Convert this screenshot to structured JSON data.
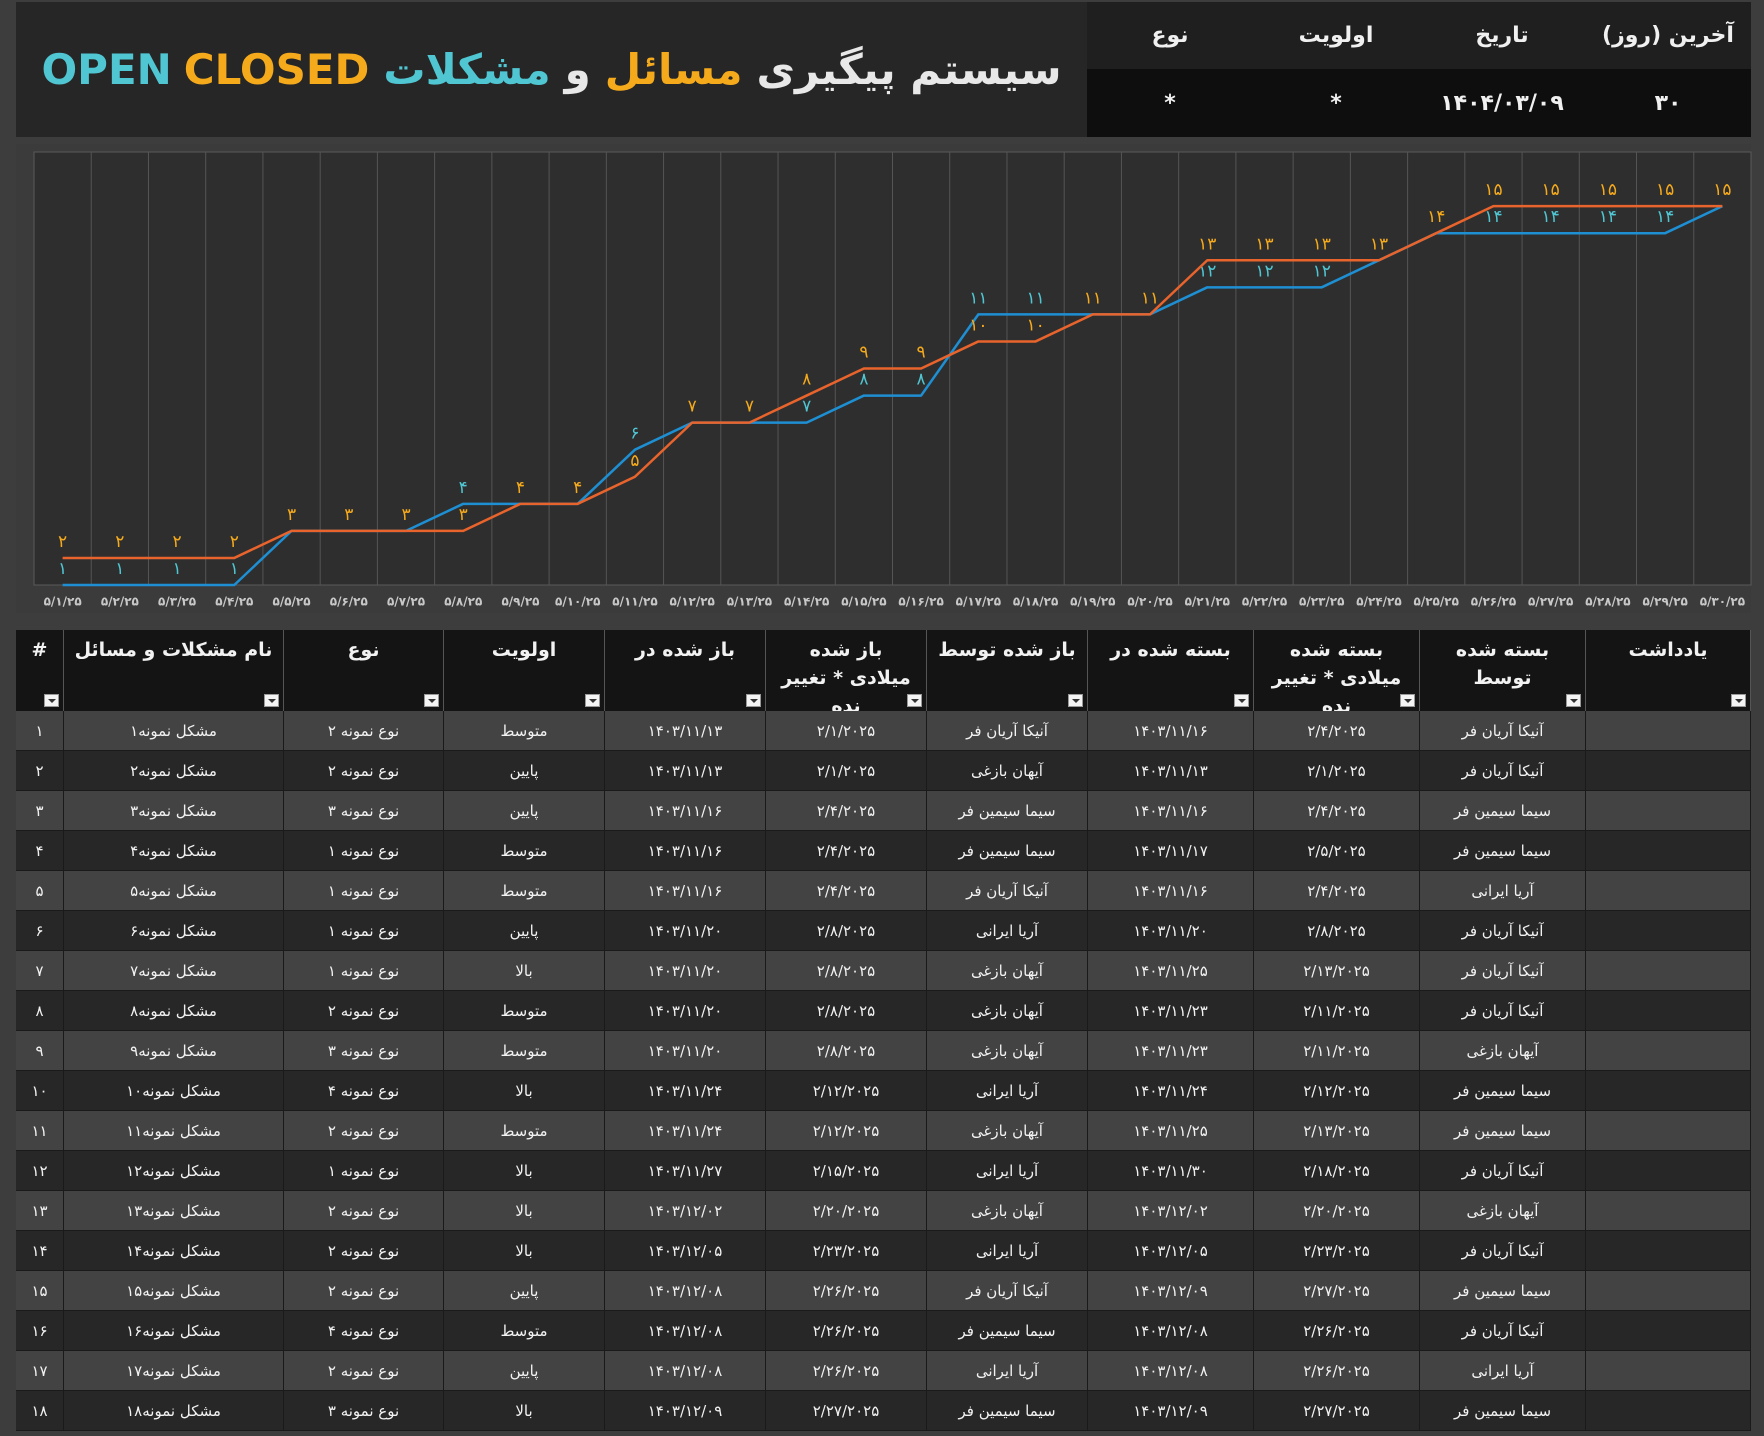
{
  "header": {
    "title_parts": [
      "سیستم پیگیری",
      "مسائل",
      "و",
      "مشکلات",
      "OPEN",
      "CLOSED"
    ]
  },
  "filters": {
    "headers": [
      "آخرین (روز)",
      "تاریخ",
      "اولویت",
      "نوع"
    ],
    "values": [
      "۳۰",
      "۱۴۰۴/۰۳/۰۹",
      "*",
      "*"
    ]
  },
  "chart_data": {
    "type": "line",
    "categories": [
      "۵/۱/۲۵",
      "۵/۲/۲۵",
      "۵/۳/۲۵",
      "۵/۴/۲۵",
      "۵/۵/۲۵",
      "۵/۶/۲۵",
      "۵/۷/۲۵",
      "۵/۸/۲۵",
      "۵/۹/۲۵",
      "۵/۱۰/۲۵",
      "۵/۱۱/۲۵",
      "۵/۱۲/۲۵",
      "۵/۱۳/۲۵",
      "۵/۱۴/۲۵",
      "۵/۱۵/۲۵",
      "۵/۱۶/۲۵",
      "۵/۱۷/۲۵",
      "۵/۱۸/۲۵",
      "۵/۱۹/۲۵",
      "۵/۲۰/۲۵",
      "۵/۲۱/۲۵",
      "۵/۲۲/۲۵",
      "۵/۲۳/۲۵",
      "۵/۲۴/۲۵",
      "۵/۲۵/۲۵",
      "۵/۲۶/۲۵",
      "۵/۲۷/۲۵",
      "۵/۲۸/۲۵",
      "۵/۲۹/۲۵",
      "۵/۳۰/۲۵"
    ],
    "series": [
      {
        "color": "#1e8fd2",
        "values": [
          1,
          1,
          1,
          1,
          3,
          3,
          3,
          4,
          4,
          4,
          6,
          7,
          7,
          7,
          8,
          8,
          11,
          11,
          11,
          11,
          12,
          12,
          12,
          13,
          14,
          14,
          14,
          14,
          14,
          15
        ],
        "value_labels": [
          "۱",
          "۱",
          "۱",
          "۱",
          null,
          null,
          null,
          "۴",
          null,
          null,
          "۶",
          null,
          null,
          "۷",
          "۸",
          "۸",
          "۱۱",
          "۱۱",
          null,
          null,
          "۱۲",
          "۱۲",
          "۱۲",
          null,
          null,
          "۱۴",
          "۱۴",
          "۱۴",
          "۱۴",
          null
        ]
      },
      {
        "color": "#e8642c",
        "values": [
          2,
          2,
          2,
          2,
          3,
          3,
          3,
          3,
          4,
          4,
          5,
          7,
          7,
          8,
          9,
          9,
          10,
          10,
          11,
          11,
          13,
          13,
          13,
          13,
          14,
          15,
          15,
          15,
          15,
          15
        ],
        "value_labels": [
          "۲",
          "۲",
          "۲",
          "۲",
          "۳",
          "۳",
          "۳",
          "۳",
          "۴",
          "۴",
          "۵",
          "۷",
          "۷",
          "۸",
          "۹",
          "۹",
          "۱۰",
          "۱۰",
          "۱۱",
          "۱۱",
          "۱۳",
          "۱۳",
          "۱۳",
          "۱۳",
          "۱۴",
          "۱۵",
          "۱۵",
          "۱۵",
          "۱۵",
          "۱۵"
        ]
      }
    ],
    "ylim": [
      1,
      17
    ]
  },
  "table": {
    "columns": [
      "#",
      "نام مشکلات و مسائل",
      "نوع",
      "اولویت",
      "باز شده در",
      "باز شده میلادی * تغییر نده",
      "باز شده توسط",
      "بسته شده در",
      "بسته شده میلادی * تغییر نده",
      "بسته شده توسط",
      "یادداشت"
    ],
    "rows": [
      [
        "۱",
        "مشکل نمونه۱",
        "نوع نمونه ۲",
        "متوسط",
        "۱۴۰۳/۱۱/۱۳",
        "۲/۱/۲۰۲۵",
        "آنیکا آریان فر",
        "۱۴۰۳/۱۱/۱۶",
        "۲/۴/۲۰۲۵",
        "آنیکا آریان فر"
      ],
      [
        "۲",
        "مشکل نمونه۲",
        "نوع نمونه ۲",
        "پایین",
        "۱۴۰۳/۱۱/۱۳",
        "۲/۱/۲۰۲۵",
        "آیهان بازغی",
        "۱۴۰۳/۱۱/۱۳",
        "۲/۱/۲۰۲۵",
        "آنیکا آریان فر"
      ],
      [
        "۳",
        "مشکل نمونه۳",
        "نوع نمونه ۳",
        "پایین",
        "۱۴۰۳/۱۱/۱۶",
        "۲/۴/۲۰۲۵",
        "سیما سیمین فر",
        "۱۴۰۳/۱۱/۱۶",
        "۲/۴/۲۰۲۵",
        "سیما سیمین فر"
      ],
      [
        "۴",
        "مشکل نمونه۴",
        "نوع نمونه ۱",
        "متوسط",
        "۱۴۰۳/۱۱/۱۶",
        "۲/۴/۲۰۲۵",
        "سیما سیمین فر",
        "۱۴۰۳/۱۱/۱۷",
        "۲/۵/۲۰۲۵",
        "سیما سیمین فر"
      ],
      [
        "۵",
        "مشکل نمونه۵",
        "نوع نمونه ۱",
        "متوسط",
        "۱۴۰۳/۱۱/۱۶",
        "۲/۴/۲۰۲۵",
        "آنیکا آریان فر",
        "۱۴۰۳/۱۱/۱۶",
        "۲/۴/۲۰۲۵",
        "آریا ایرانی"
      ],
      [
        "۶",
        "مشکل نمونه۶",
        "نوع نمونه ۱",
        "پایین",
        "۱۴۰۳/۱۱/۲۰",
        "۲/۸/۲۰۲۵",
        "آریا ایرانی",
        "۱۴۰۳/۱۱/۲۰",
        "۲/۸/۲۰۲۵",
        "آنیکا آریان فر"
      ],
      [
        "۷",
        "مشکل نمونه۷",
        "نوع نمونه ۱",
        "بالا",
        "۱۴۰۳/۱۱/۲۰",
        "۲/۸/۲۰۲۵",
        "آیهان بازغی",
        "۱۴۰۳/۱۱/۲۵",
        "۲/۱۳/۲۰۲۵",
        "آنیکا آریان فر"
      ],
      [
        "۸",
        "مشکل نمونه۸",
        "نوع نمونه ۲",
        "متوسط",
        "۱۴۰۳/۱۱/۲۰",
        "۲/۸/۲۰۲۵",
        "آیهان بازغی",
        "۱۴۰۳/۱۱/۲۳",
        "۲/۱۱/۲۰۲۵",
        "آنیکا آریان فر"
      ],
      [
        "۹",
        "مشکل نمونه۹",
        "نوع نمونه ۳",
        "متوسط",
        "۱۴۰۳/۱۱/۲۰",
        "۲/۸/۲۰۲۵",
        "آیهان بازغی",
        "۱۴۰۳/۱۱/۲۳",
        "۲/۱۱/۲۰۲۵",
        "آیهان بازغی"
      ],
      [
        "۱۰",
        "مشکل نمونه۱۰",
        "نوع نمونه ۴",
        "بالا",
        "۱۴۰۳/۱۱/۲۴",
        "۲/۱۲/۲۰۲۵",
        "آریا ایرانی",
        "۱۴۰۳/۱۱/۲۴",
        "۲/۱۲/۲۰۲۵",
        "سیما سیمین فر"
      ],
      [
        "۱۱",
        "مشکل نمونه۱۱",
        "نوع نمونه ۲",
        "متوسط",
        "۱۴۰۳/۱۱/۲۴",
        "۲/۱۲/۲۰۲۵",
        "آیهان بازغی",
        "۱۴۰۳/۱۱/۲۵",
        "۲/۱۳/۲۰۲۵",
        "سیما سیمین فر"
      ],
      [
        "۱۲",
        "مشکل نمونه۱۲",
        "نوع نمونه ۱",
        "بالا",
        "۱۴۰۳/۱۱/۲۷",
        "۲/۱۵/۲۰۲۵",
        "آریا ایرانی",
        "۱۴۰۳/۱۱/۳۰",
        "۲/۱۸/۲۰۲۵",
        "آنیکا آریان فر"
      ],
      [
        "۱۳",
        "مشکل نمونه۱۳",
        "نوع نمونه ۲",
        "بالا",
        "۱۴۰۳/۱۲/۰۲",
        "۲/۲۰/۲۰۲۵",
        "آیهان بازغی",
        "۱۴۰۳/۱۲/۰۲",
        "۲/۲۰/۲۰۲۵",
        "آیهان بازغی"
      ],
      [
        "۱۴",
        "مشکل نمونه۱۴",
        "نوع نمونه ۲",
        "بالا",
        "۱۴۰۳/۱۲/۰۵",
        "۲/۲۳/۲۰۲۵",
        "آریا ایرانی",
        "۱۴۰۳/۱۲/۰۵",
        "۲/۲۳/۲۰۲۵",
        "آنیکا آریان فر"
      ],
      [
        "۱۵",
        "مشکل نمونه۱۵",
        "نوع نمونه ۲",
        "پایین",
        "۱۴۰۳/۱۲/۰۸",
        "۲/۲۶/۲۰۲۵",
        "آنیکا آریان فر",
        "۱۴۰۳/۱۲/۰۹",
        "۲/۲۷/۲۰۲۵",
        "سیما سیمین فر"
      ],
      [
        "۱۶",
        "مشکل نمونه۱۶",
        "نوع نمونه ۴",
        "متوسط",
        "۱۴۰۳/۱۲/۰۸",
        "۲/۲۶/۲۰۲۵",
        "سیما سیمین فر",
        "۱۴۰۳/۱۲/۰۸",
        "۲/۲۶/۲۰۲۵",
        "آنیکا آریان فر"
      ],
      [
        "۱۷",
        "مشکل نمونه۱۷",
        "نوع نمونه ۲",
        "پایین",
        "۱۴۰۳/۱۲/۰۸",
        "۲/۲۶/۲۰۲۵",
        "آریا ایرانی",
        "۱۴۰۳/۱۲/۰۸",
        "۲/۲۶/۲۰۲۵",
        "آریا ایرانی"
      ],
      [
        "۱۸",
        "مشکل نمونه۱۸",
        "نوع نمونه ۳",
        "بالا",
        "۱۴۰۳/۱۲/۰۹",
        "۲/۲۷/۲۰۲۵",
        "سیما سیمین فر",
        "۱۴۰۳/۱۲/۰۹",
        "۲/۲۷/۲۰۲۵",
        "سیما سیمین فر"
      ]
    ]
  }
}
